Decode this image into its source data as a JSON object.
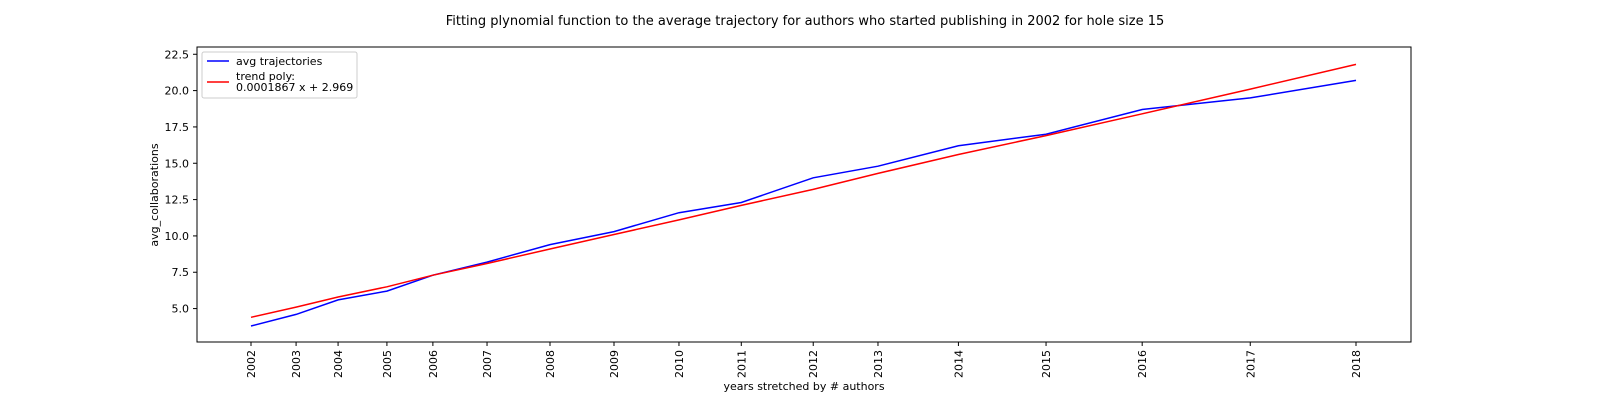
{
  "chart_data": {
    "type": "line",
    "title": "Fitting plynomial function to the average trajectory for authors who started publishing in 2002 for hole size 15",
    "xlabel": "years stretched by # authors",
    "ylabel": "avg_collaborations",
    "grid": false,
    "legend_position": "top-left",
    "x_ticks": [
      "2002",
      "2003",
      "2004",
      "2005",
      "2006",
      "2007",
      "2008",
      "2009",
      "2010",
      "2011",
      "2012",
      "2013",
      "2014",
      "2015",
      "2016",
      "2017",
      "2018"
    ],
    "y_ticks": [
      "5.0",
      "7.5",
      "10.0",
      "12.5",
      "15.0",
      "17.5",
      "20.0",
      "22.5"
    ],
    "ylim": [
      2.7,
      23.0
    ],
    "series": [
      {
        "name": "avg trajectories",
        "color": "#0000ff",
        "values": [
          3.8,
          4.6,
          5.6,
          6.2,
          7.3,
          8.2,
          9.4,
          10.3,
          11.6,
          12.3,
          14.0,
          14.8,
          16.2,
          17.0,
          18.7,
          19.5,
          20.7
        ]
      },
      {
        "name": "trend poly:\n0.0001867 x + 2.969",
        "color": "#ff0000",
        "values": [
          4.4,
          5.1,
          5.8,
          6.5,
          7.3,
          8.1,
          9.1,
          10.1,
          11.1,
          12.1,
          13.2,
          14.3,
          15.6,
          16.9,
          18.4,
          20.1,
          21.8
        ]
      }
    ]
  }
}
